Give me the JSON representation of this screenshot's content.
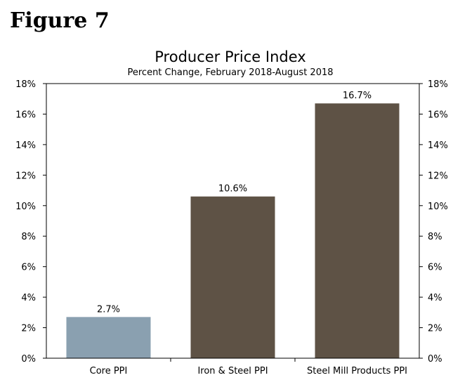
{
  "figure_label": "Figure 7",
  "chart_data": {
    "type": "bar",
    "title": "Producer Price Index",
    "subtitle": "Percent Change, February 2018-August 2018",
    "categories": [
      "Core PPI",
      "Iron & Steel PPI",
      "Steel Mill Products PPI"
    ],
    "values": [
      2.7,
      10.6,
      16.7
    ],
    "data_labels": [
      "2.7%",
      "10.6%",
      "16.7%"
    ],
    "colors": [
      "#8aa0b0",
      "#5e5245",
      "#5e5245"
    ],
    "ylim": [
      0,
      18
    ],
    "yticks": [
      0,
      2,
      4,
      6,
      8,
      10,
      12,
      14,
      16,
      18
    ],
    "ytick_labels": [
      "0%",
      "2%",
      "4%",
      "6%",
      "8%",
      "10%",
      "12%",
      "14%",
      "16%",
      "18%"
    ],
    "xlabel": "",
    "ylabel": "",
    "grid": false,
    "legend": "none"
  }
}
